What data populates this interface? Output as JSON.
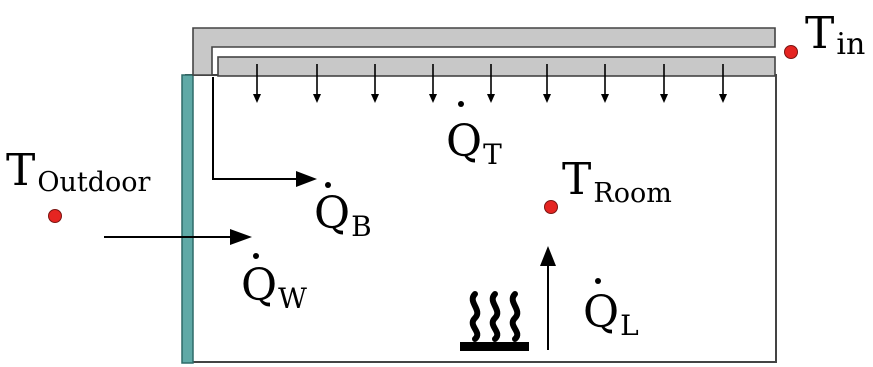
{
  "labels": {
    "t_in": {
      "main": "T",
      "sub": "in"
    },
    "t_outdoor": {
      "main": "T",
      "sub": "Outdoor"
    },
    "t_room": {
      "main": "T",
      "sub": "Room"
    },
    "q_t": {
      "main": "Q",
      "sub": "T"
    },
    "q_b": {
      "main": "Q",
      "sub": "B"
    },
    "q_w": {
      "main": "Q",
      "sub": "W"
    },
    "q_l": {
      "main": "Q",
      "sub": "L"
    }
  },
  "colors": {
    "wall": "#5fa9a6",
    "duct_fill": "#c8c8c8",
    "outline": "#333333",
    "sensor": "#e52421",
    "line": "#000000"
  }
}
